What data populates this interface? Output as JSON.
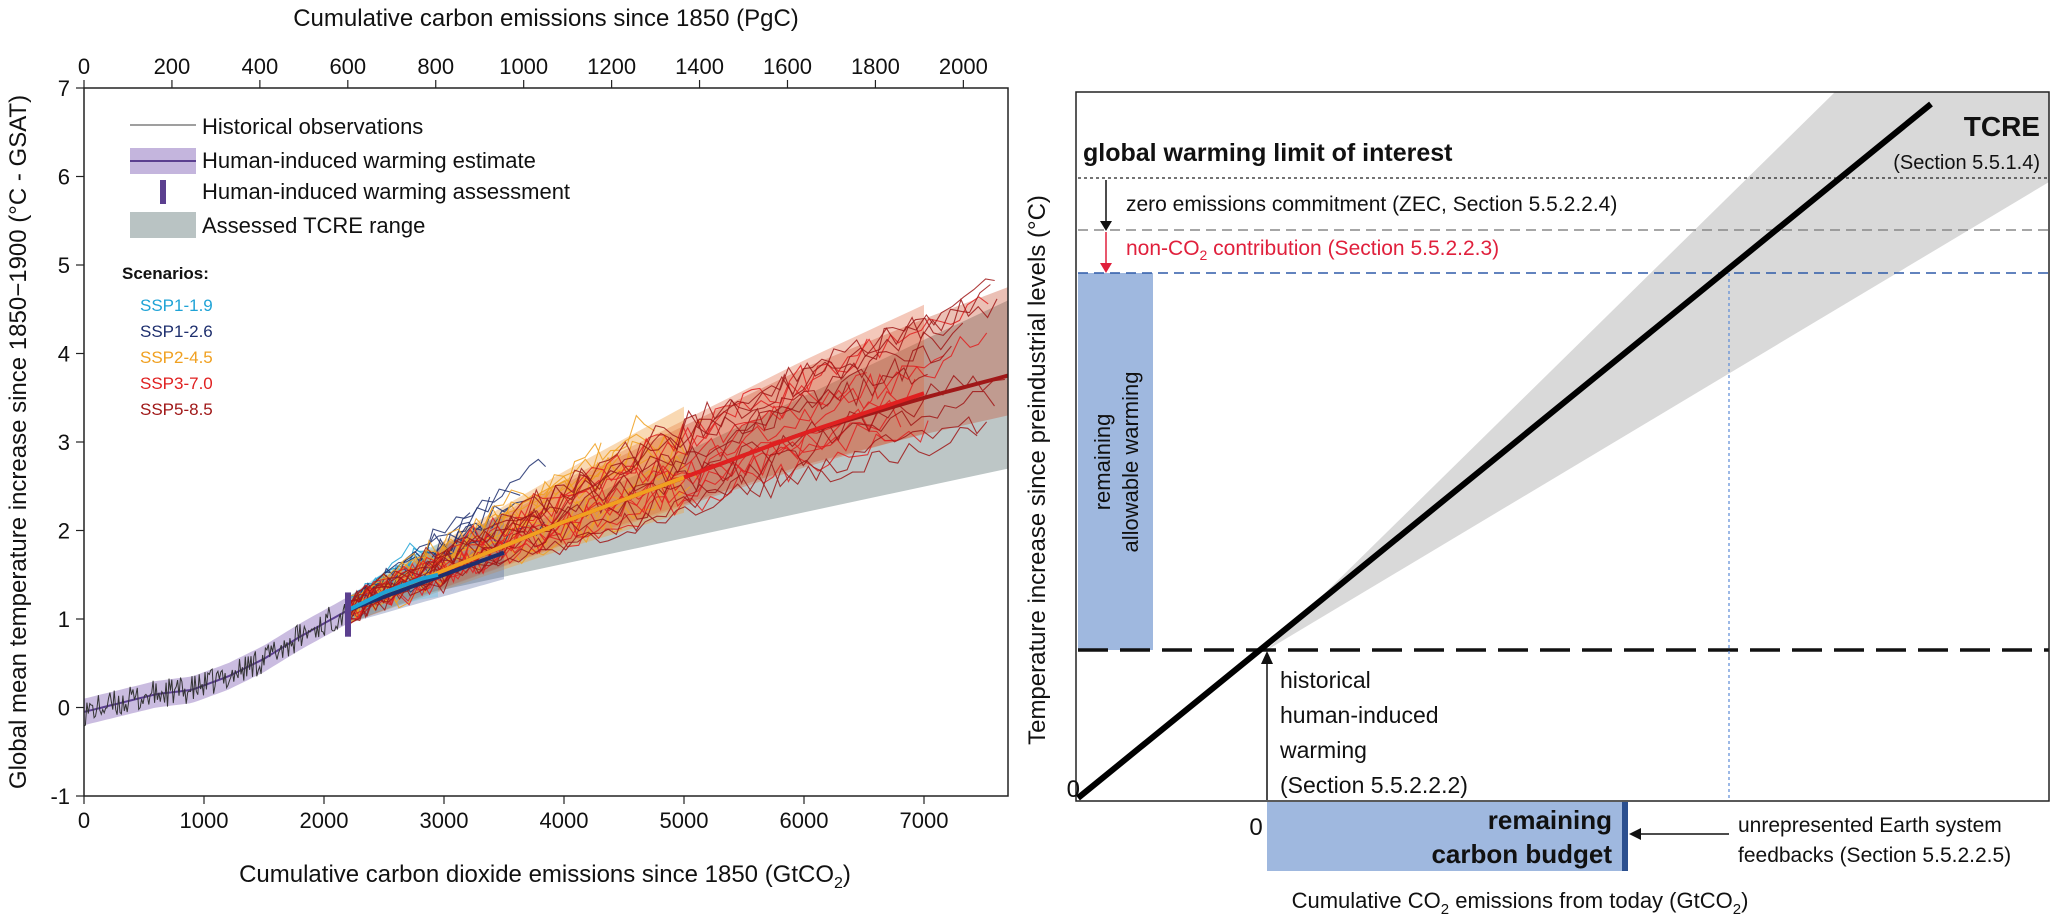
{
  "chart_data": [
    {
      "type": "line",
      "panel": "left",
      "xlabel_main": "Cumulative carbon dioxide emissions since 1850 (GtCO",
      "xlabel_sub": "2",
      "xlabel_end": ")",
      "x2label": "Cumulative carbon emissions since 1850 (PgC)",
      "ylabel": "Global mean temperature increase since 1850−1900 (°C - GSAT)",
      "xlim": [
        0,
        7700
      ],
      "ylim": [
        -1,
        7
      ],
      "x_ticks": [
        "0",
        "1000",
        "2000",
        "3000",
        "4000",
        "5000",
        "6000",
        "7000"
      ],
      "x2_ticks": [
        "0",
        "200",
        "400",
        "600",
        "800",
        "1000",
        "1200",
        "1400",
        "1600",
        "1800",
        "2000"
      ],
      "y_ticks": [
        "-1",
        "0",
        "1",
        "2",
        "3",
        "4",
        "5",
        "6",
        "7"
      ],
      "legend": [
        {
          "label": "Historical observations",
          "kind": "thin-line",
          "color": "#555555"
        },
        {
          "label": "Human-induced warming estimate",
          "kind": "band-line",
          "color": "#6a4c93"
        },
        {
          "label": "Human-induced warming assessment",
          "kind": "bar",
          "color": "#5b3f8f"
        },
        {
          "label": "Assessed TCRE range",
          "kind": "band",
          "color": "#b9c3c3"
        }
      ],
      "scenarios_title": "Scenarios:",
      "scenarios": [
        {
          "name": "SSP1-1.9",
          "color": "#1fa3d6"
        },
        {
          "name": "SSP1-2.6",
          "color": "#1e2f6e"
        },
        {
          "name": "SSP2-4.5",
          "color": "#f0a020"
        },
        {
          "name": "SSP3-7.0",
          "color": "#e02020"
        },
        {
          "name": "SSP5-8.5",
          "color": "#a01818"
        }
      ],
      "historical_estimate": {
        "x": [
          0,
          300,
          600,
          900,
          1200,
          1500,
          1800,
          2000,
          2200
        ],
        "y": [
          -0.05,
          0.05,
          0.15,
          0.2,
          0.35,
          0.55,
          0.8,
          0.95,
          1.1
        ]
      },
      "assessment": {
        "x": 2200,
        "y_low": 0.8,
        "y_high": 1.3
      },
      "tcre_range": {
        "x_start": 2200,
        "x_end": 7700,
        "y_start": 1.1,
        "low_end": 2.7,
        "high_end": 4.6
      },
      "scenario_means": [
        {
          "name": "SSP1-1.9",
          "x": [
            2200,
            2500,
            2800,
            2950
          ],
          "y": [
            1.1,
            1.3,
            1.45,
            1.5
          ]
        },
        {
          "name": "SSP1-2.6",
          "x": [
            2200,
            2700,
            3200,
            3500
          ],
          "y": [
            1.1,
            1.35,
            1.6,
            1.75
          ]
        },
        {
          "name": "SSP2-4.5",
          "x": [
            2200,
            3000,
            4000,
            5000
          ],
          "y": [
            1.1,
            1.55,
            2.1,
            2.6
          ]
        },
        {
          "name": "SSP3-7.0",
          "x": [
            2200,
            3000,
            4000,
            5000,
            6000,
            7000
          ],
          "y": [
            1.1,
            1.55,
            2.1,
            2.6,
            3.1,
            3.55
          ]
        },
        {
          "name": "SSP5-8.5",
          "x": [
            2200,
            3000,
            4000,
            5000,
            6000,
            7000,
            7700
          ],
          "y": [
            1.1,
            1.55,
            2.1,
            2.6,
            3.1,
            3.5,
            3.75
          ]
        }
      ]
    },
    {
      "type": "diagram",
      "panel": "right",
      "ylabel": "Temperature increase since preindustrial levels (°C)",
      "xlabel_main": "Cumulative CO",
      "xlabel_sub": "2",
      "xlabel_end": " emissions from today (GtCO",
      "xlabel_sub2": "2",
      "xlabel_close": ")",
      "origin_label": "0",
      "zero_label": "0",
      "tcre_title": "TCRE",
      "tcre_section": "(Section 5.5.1.4)",
      "limit_label": "global warming limit of interest",
      "zec_label": "zero emissions commitment (ZEC, Section 5.5.2.2.4)",
      "nonco2_main": "non-CO",
      "nonco2_sub": "2",
      "nonco2_end": " contribution (Section 5.5.2.2.3)",
      "remaining_warming_line1": "remaining",
      "remaining_warming_line2": "allowable warming",
      "historical_lines": [
        "historical",
        "human-induced",
        "warming",
        "(Section 5.5.2.2.2)"
      ],
      "budget_line1": "remaining",
      "budget_line2": "carbon budget",
      "unrepresented_lines": [
        "unrepresented Earth system",
        "feedbacks (Section 5.5.2.2.5)"
      ],
      "colors": {
        "budget": "#9fb8df",
        "budget_edge": "#2b4f8f",
        "nonco2": "#e0203c",
        "band": "#d9d9d9",
        "limit_dash": "#2e5aa8"
      }
    }
  ]
}
